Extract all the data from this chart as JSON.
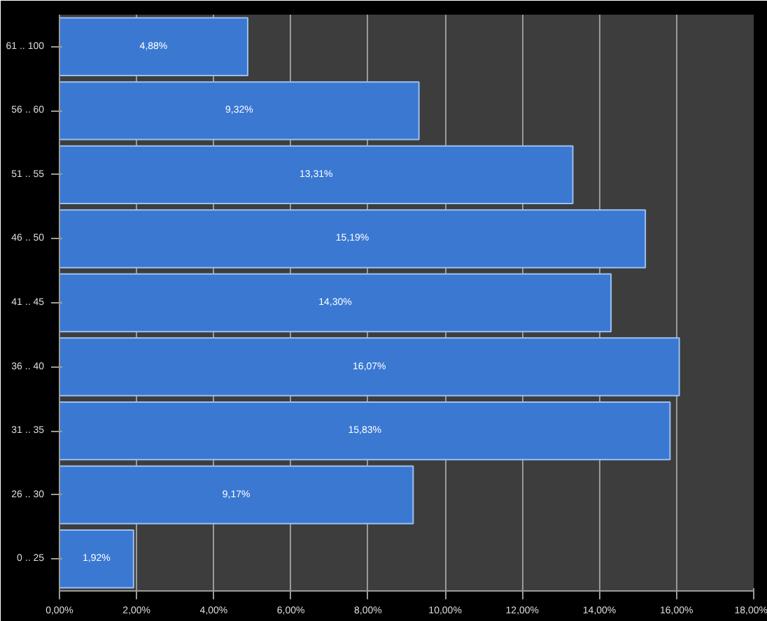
{
  "chart_data": {
    "type": "bar",
    "orientation": "horizontal",
    "categories": [
      "61 .. 100",
      "56 .. 60",
      "51 .. 55",
      "46 .. 50",
      "41 .. 45",
      "36 .. 40",
      "31 .. 35",
      "26 .. 30",
      "0 .. 25"
    ],
    "values": [
      4.88,
      9.32,
      13.31,
      15.19,
      14.3,
      16.07,
      15.83,
      9.17,
      1.92
    ],
    "value_labels": [
      "4,88%",
      "9,32%",
      "13,31%",
      "15,19%",
      "14,30%",
      "16,07%",
      "15,83%",
      "9,17%",
      "1,92%"
    ],
    "color": "#3a78d2",
    "xlim": [
      0,
      18
    ],
    "xticks": [
      {
        "value": 0,
        "label": "0,00%"
      },
      {
        "value": 2,
        "label": "2,00%"
      },
      {
        "value": 4,
        "label": "4,00%"
      },
      {
        "value": 6,
        "label": "6,00%"
      },
      {
        "value": 8,
        "label": "8,00%"
      },
      {
        "value": 10,
        "label": "10,00%"
      },
      {
        "value": 12,
        "label": "12,00%"
      },
      {
        "value": 14,
        "label": "14,00%"
      },
      {
        "value": 16,
        "label": "16,00%"
      },
      {
        "value": 18,
        "label": "18,00%"
      }
    ],
    "grid": "x"
  }
}
